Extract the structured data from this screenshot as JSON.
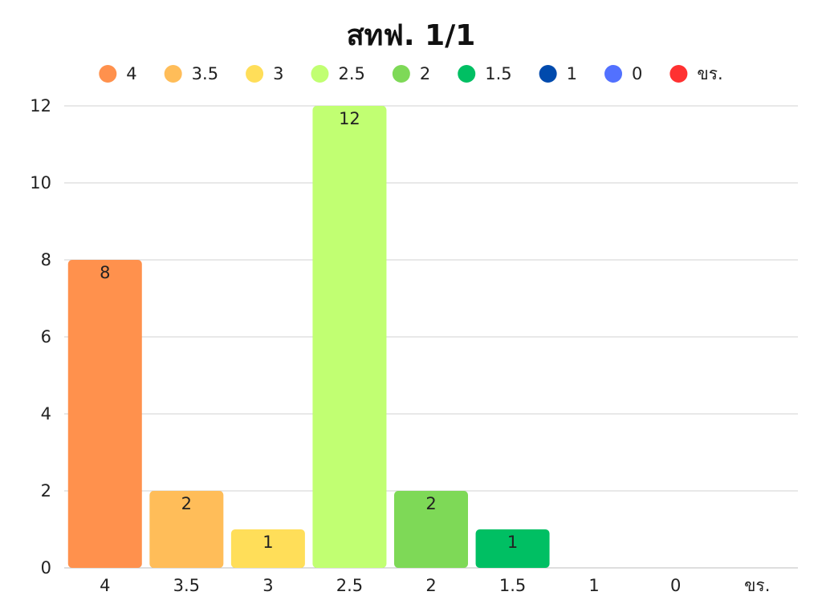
{
  "chart_data": {
    "type": "bar",
    "title": "สทฟ. 1/1",
    "xlabel": "",
    "ylabel": "",
    "categories": [
      "4",
      "3.5",
      "3",
      "2.5",
      "2",
      "1.5",
      "1",
      "0",
      "ขร."
    ],
    "values": [
      8,
      2,
      1,
      12,
      2,
      1,
      0,
      0,
      0
    ],
    "colors": [
      "#FF914D",
      "#FFBD59",
      "#FFDE59",
      "#C1FF72",
      "#7ED957",
      "#00BF63",
      "#004AAD",
      "#5271FF",
      "#FF3131"
    ],
    "ylim": [
      0,
      12
    ],
    "yticks": [
      0,
      2,
      4,
      6,
      8,
      10,
      12
    ],
    "grid": true,
    "legend_position": "top"
  }
}
